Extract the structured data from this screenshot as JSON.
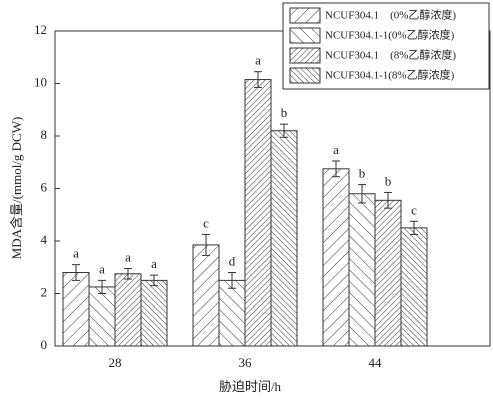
{
  "chart_data": {
    "type": "bar",
    "ylabel": "MDA含量/(mmol/g DCW)",
    "xlabel": "胁迫时间/h",
    "categories": [
      "28",
      "36",
      "44"
    ],
    "ylim": [
      0,
      12
    ],
    "yticks": [
      0,
      2,
      4,
      6,
      8,
      10,
      12
    ],
    "legend": "upper right",
    "series": [
      {
        "name": "NCUF304.1    (0%乙醇浓度)",
        "color": "#333333",
        "values": [
          2.8,
          3.85,
          6.75
        ],
        "errors": [
          0.3,
          0.4,
          0.3
        ],
        "labels": [
          "a",
          "c",
          "a"
        ]
      },
      {
        "name": "NCUF304.1-1(0%乙醇浓度)",
        "color": "#333333",
        "values": [
          2.25,
          2.5,
          5.8
        ],
        "errors": [
          0.25,
          0.3,
          0.35
        ],
        "labels": [
          "a",
          "d",
          "b"
        ]
      },
      {
        "name": "NCUF304.1    (8%乙醇浓度)",
        "color": "#333333",
        "values": [
          2.75,
          10.15,
          5.55
        ],
        "errors": [
          0.2,
          0.3,
          0.3
        ],
        "labels": [
          "a",
          "a",
          "b"
        ]
      },
      {
        "name": "NCUF304.1-1(8%乙醇浓度)",
        "color": "#333333",
        "values": [
          2.5,
          8.2,
          4.5
        ],
        "errors": [
          0.2,
          0.25,
          0.25
        ],
        "labels": [
          "a",
          "b",
          "c"
        ]
      }
    ]
  }
}
